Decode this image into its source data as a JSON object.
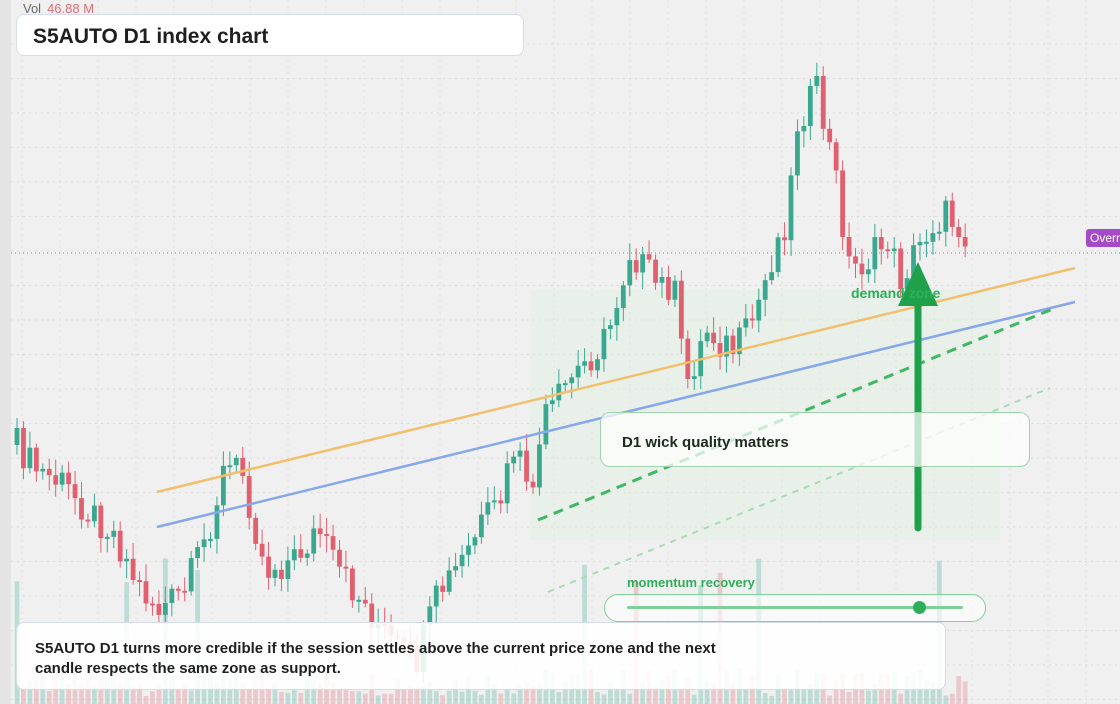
{
  "header": {
    "vol_label": "Vol",
    "vol_value": "46.88 M",
    "title": "S5AUTO D1 index chart"
  },
  "annotations": {
    "note": "D1 wick quality matters",
    "zone_label": "demand zone",
    "momentum_label": "momentum recovery",
    "momentum_level": 0.87,
    "price_tag": "Overnight",
    "commentary": "S5AUTO D1 turns more credible if the session settles above the current price zone and the next candle respects the same zone as support."
  },
  "colors": {
    "up": "#3aa88e",
    "down": "#e06070",
    "trend_orange": "#f2bf6c",
    "trend_blue": "#86a8ea",
    "zone_green": "#1fa04a",
    "price_line": "#d0607a",
    "tag": "#a54bc7"
  },
  "chart_data": {
    "type": "candlestick",
    "title": "S5AUTO D1 index chart",
    "candle_count": 148,
    "trend_start": 100,
    "trend_end": 196,
    "peak_value": 212,
    "last_close": 181,
    "overlays": [
      {
        "name": "upper trendline",
        "color": "#f2bf6c"
      },
      {
        "name": "lower trendline",
        "color": "#86a8ea"
      },
      {
        "name": "support channel",
        "color": "#3fb865",
        "style": "dashed"
      },
      {
        "name": "price line",
        "color": "#d0607a",
        "style": "dotted"
      }
    ]
  }
}
